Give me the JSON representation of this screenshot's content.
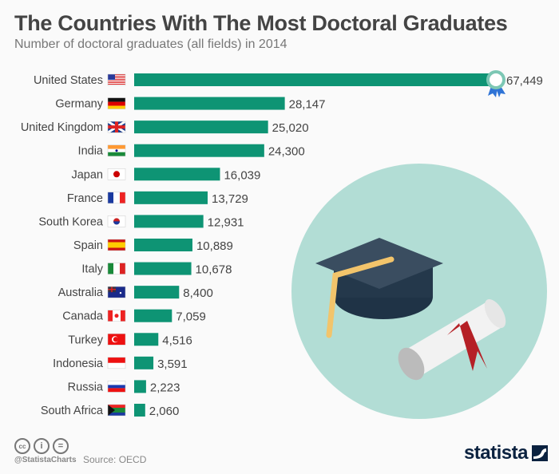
{
  "chart_data": {
    "type": "bar",
    "orientation": "horizontal",
    "title": "The Countries With The Most Doctoral Graduates",
    "subtitle": "Number of doctoral graduates (all fields) in 2014",
    "categories": [
      "United States",
      "Germany",
      "United Kingdom",
      "India",
      "Japan",
      "France",
      "South Korea",
      "Spain",
      "Italy",
      "Australia",
      "Canada",
      "Turkey",
      "Indonesia",
      "Russia",
      "South Africa"
    ],
    "values": [
      67449,
      28147,
      25020,
      24300,
      16039,
      13729,
      12931,
      10889,
      10678,
      8400,
      7059,
      4516,
      3591,
      2223,
      2060
    ],
    "labels": [
      "67,449",
      "28,147",
      "25,020",
      "24,300",
      "16,039",
      "13,729",
      "12,931",
      "10,889",
      "10,678",
      "8,400",
      "7,059",
      "4,516",
      "3,591",
      "2,223",
      "2,060"
    ],
    "bar_color": "#0e9474",
    "xlim": [
      0,
      67449
    ],
    "grid": false
  },
  "footer": {
    "handle": "@StatistaCharts",
    "source": "Source: OECD",
    "brand": "statista"
  },
  "colors": {
    "title": "#444444",
    "circle": "#b2ddd5",
    "brand": "#0b2240"
  }
}
